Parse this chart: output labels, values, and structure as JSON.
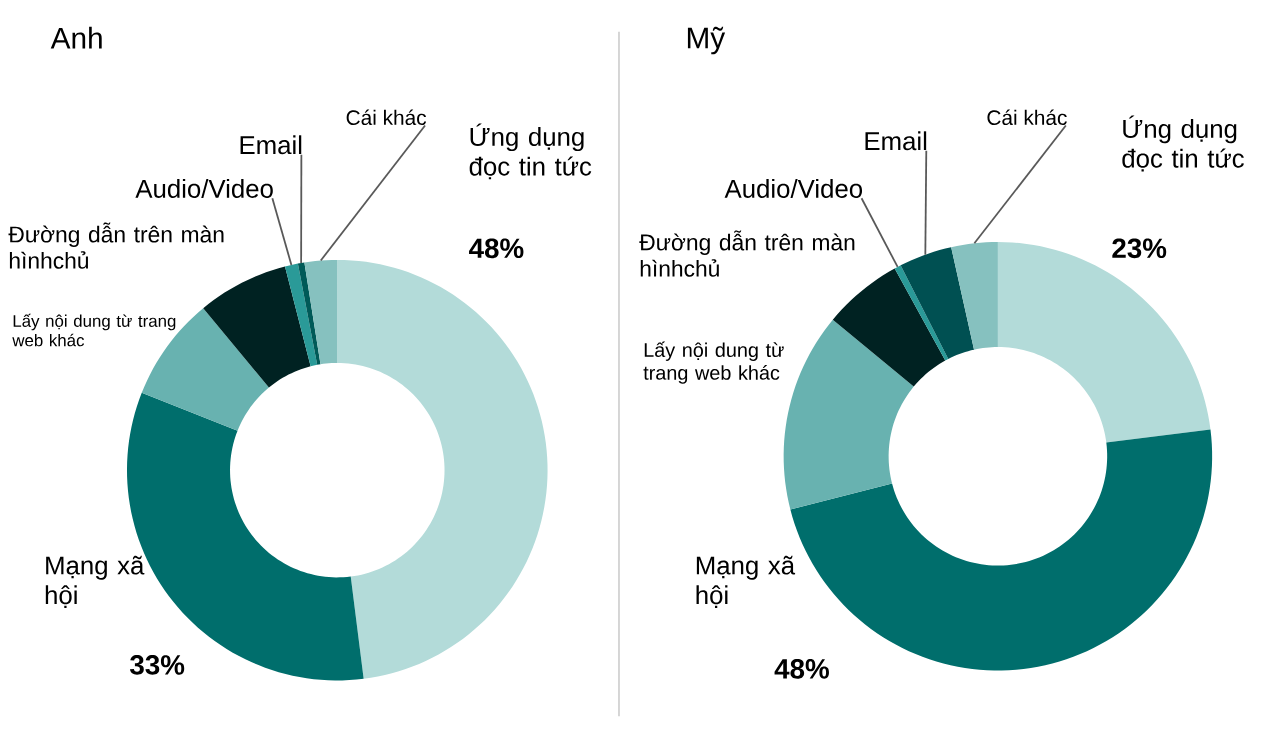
{
  "chart_data": [
    {
      "type": "donut",
      "title": "Anh",
      "categories": [
        "Ứng dụng đọc tin tức",
        "Mạng xã hội",
        "Lấy nội dung từ trang web khác",
        "Đường dẫn trên màn hìnhchủ",
        "Audio/Video",
        "Email",
        "Cái khác"
      ],
      "values": [
        48,
        33,
        8,
        7,
        1,
        0.5,
        2.5
      ],
      "value_labels": [
        "48%",
        "33%",
        null,
        null,
        null,
        null,
        null
      ],
      "colors": [
        "#b3dbd9",
        "#006e6c",
        "#68b2b0",
        "#002222",
        "#2a9a98",
        "#005a58",
        "#86c1bf"
      ]
    },
    {
      "type": "donut",
      "title": "Mỹ",
      "categories": [
        "Ứng dụng đọc tin tức",
        "Mạng xã hội",
        "Lấy nội dung từ trang web khác",
        "Đường dẫn trên màn hìnhchủ",
        "Audio/Video",
        "Email",
        "Cái khác"
      ],
      "values": [
        23,
        48,
        15,
        6,
        0.5,
        4,
        3.5
      ],
      "value_labels": [
        "23%",
        "48%",
        null,
        null,
        null,
        null,
        null
      ],
      "colors": [
        "#b3dbd9",
        "#006e6c",
        "#68b2b0",
        "#002222",
        "#2a9a98",
        "#005052",
        "#86c1bf"
      ]
    }
  ]
}
